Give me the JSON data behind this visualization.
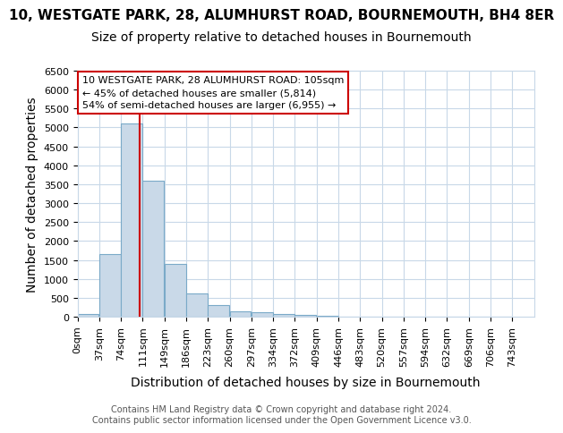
{
  "title": "10, WESTGATE PARK, 28, ALUMHURST ROAD, BOURNEMOUTH, BH4 8ER",
  "subtitle": "Size of property relative to detached houses in Bournemouth",
  "xlabel": "Distribution of detached houses by size in Bournemouth",
  "ylabel": "Number of detached properties",
  "bar_color": "#c9d9e8",
  "bar_edge_color": "#7aaac8",
  "grid_color": "#c8d8e8",
  "background_color": "#ffffff",
  "bin_labels": [
    "0sqm",
    "37sqm",
    "74sqm",
    "111sqm",
    "149sqm",
    "186sqm",
    "223sqm",
    "260sqm",
    "297sqm",
    "334sqm",
    "372sqm",
    "409sqm",
    "446sqm",
    "483sqm",
    "520sqm",
    "557sqm",
    "594sqm",
    "632sqm",
    "669sqm",
    "706sqm",
    "743sqm"
  ],
  "bar_heights": [
    75,
    1650,
    5100,
    3600,
    1400,
    620,
    300,
    150,
    130,
    80,
    50,
    30,
    10,
    0,
    0,
    0,
    0,
    0,
    0,
    0
  ],
  "property_size": 105,
  "bin_width": 37,
  "ylim": [
    0,
    6500
  ],
  "yticks": [
    0,
    500,
    1000,
    1500,
    2000,
    2500,
    3000,
    3500,
    4000,
    4500,
    5000,
    5500,
    6000,
    6500
  ],
  "vline_color": "#cc0000",
  "annotation_text": "10 WESTGATE PARK, 28 ALUMHURST ROAD: 105sqm\n← 45% of detached houses are smaller (5,814)\n54% of semi-detached houses are larger (6,955) →",
  "annotation_box_color": "#ffffff",
  "annotation_box_edge": "#cc0000",
  "footer_text": "Contains HM Land Registry data © Crown copyright and database right 2024.\nContains public sector information licensed under the Open Government Licence v3.0.",
  "title_fontsize": 11,
  "subtitle_fontsize": 10,
  "axis_label_fontsize": 10,
  "tick_fontsize": 8,
  "annotation_fontsize": 8,
  "footer_fontsize": 7
}
